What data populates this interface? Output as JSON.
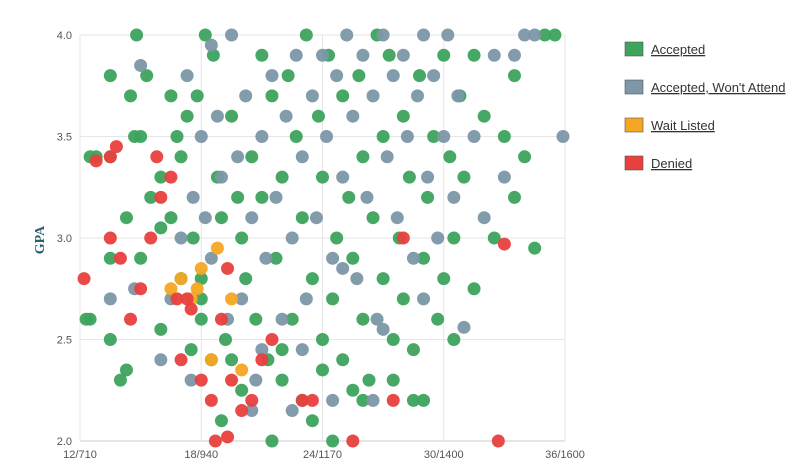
{
  "chart_data": {
    "type": "scatter",
    "title": "",
    "xlabel": "",
    "ylabel": "GPA",
    "x_tick_labels": [
      "12/710",
      "18/940",
      "24/1170",
      "30/1400",
      "36/1600"
    ],
    "x_ticks": [
      12,
      18,
      24,
      30,
      36
    ],
    "xlim": [
      12,
      36
    ],
    "y_ticks": [
      "2.0",
      "2.5",
      "3.0",
      "3.5",
      "4.0"
    ],
    "ylim": [
      2.0,
      4.0
    ],
    "grid": true,
    "legend_position": "right",
    "series": [
      {
        "name": "Accepted",
        "color": "#3da35d",
        "points": [
          [
            12.3,
            2.6
          ],
          [
            12.5,
            2.6
          ],
          [
            12.5,
            3.4
          ],
          [
            13.5,
            3.8
          ],
          [
            13.5,
            3.4
          ],
          [
            13.5,
            2.9
          ],
          [
            14,
            2.3
          ],
          [
            14.3,
            3.1
          ],
          [
            14.5,
            3.7
          ],
          [
            14.7,
            3.5
          ],
          [
            15,
            3.5
          ],
          [
            15,
            2.9
          ],
          [
            15.5,
            3.2
          ],
          [
            16,
            3.3
          ],
          [
            16,
            3.05
          ],
          [
            16.5,
            3.1
          ],
          [
            16.8,
            3.5
          ],
          [
            17,
            3.4
          ],
          [
            17.3,
            3.6
          ],
          [
            17.6,
            3.0
          ],
          [
            17.8,
            3.7
          ],
          [
            18,
            2.8
          ],
          [
            18,
            2.7
          ],
          [
            18.5,
            2.4
          ],
          [
            18.6,
            3.9
          ],
          [
            18.8,
            3.3
          ],
          [
            19,
            3.1
          ],
          [
            19.2,
            2.5
          ],
          [
            19.5,
            3.6
          ],
          [
            19.8,
            3.2
          ],
          [
            20,
            3.0
          ],
          [
            20.2,
            2.8
          ],
          [
            20.5,
            3.4
          ],
          [
            20.7,
            2.6
          ],
          [
            21,
            3.9
          ],
          [
            21,
            3.2
          ],
          [
            21.3,
            2.4
          ],
          [
            21.5,
            3.7
          ],
          [
            21.7,
            2.9
          ],
          [
            22,
            3.3
          ],
          [
            22,
            2.3
          ],
          [
            22.3,
            3.8
          ],
          [
            22.5,
            2.6
          ],
          [
            22.7,
            3.5
          ],
          [
            23,
            2.2
          ],
          [
            23,
            3.1
          ],
          [
            23.2,
            4.0
          ],
          [
            23.5,
            2.8
          ],
          [
            23.8,
            3.6
          ],
          [
            24,
            2.5
          ],
          [
            24,
            3.3
          ],
          [
            24.3,
            3.9
          ],
          [
            24.5,
            2.7
          ],
          [
            24.7,
            3.0
          ],
          [
            25,
            3.7
          ],
          [
            25,
            2.4
          ],
          [
            25.3,
            3.2
          ],
          [
            25.5,
            2.9
          ],
          [
            25.8,
            3.8
          ],
          [
            26,
            2.6
          ],
          [
            26,
            3.4
          ],
          [
            26.3,
            2.3
          ],
          [
            26.5,
            3.1
          ],
          [
            26.7,
            4.0
          ],
          [
            27,
            2.8
          ],
          [
            27,
            3.5
          ],
          [
            27.3,
            3.9
          ],
          [
            27.5,
            2.5
          ],
          [
            27.8,
            3.0
          ],
          [
            28,
            3.6
          ],
          [
            28,
            2.7
          ],
          [
            28.3,
            3.3
          ],
          [
            28.5,
            2.2
          ],
          [
            28.8,
            3.8
          ],
          [
            29,
            2.9
          ],
          [
            29.2,
            3.2
          ],
          [
            29.5,
            3.5
          ],
          [
            29.7,
            2.6
          ],
          [
            30,
            3.9
          ],
          [
            30,
            2.8
          ],
          [
            30.3,
            3.4
          ],
          [
            30.5,
            3.0
          ],
          [
            30.8,
            3.7
          ],
          [
            31,
            3.3
          ],
          [
            31.5,
            3.9
          ],
          [
            32,
            3.6
          ],
          [
            32.5,
            3.0
          ],
          [
            33,
            3.5
          ],
          [
            33.5,
            3.8
          ],
          [
            34,
            3.4
          ],
          [
            34.5,
            2.95
          ],
          [
            35,
            4.0
          ],
          [
            35.5,
            4.0
          ],
          [
            19,
            2.1
          ],
          [
            21.5,
            2.0
          ],
          [
            24.5,
            2.0
          ],
          [
            23.5,
            2.1
          ],
          [
            17.5,
            2.45
          ],
          [
            14.3,
            2.35
          ],
          [
            13.5,
            2.5
          ],
          [
            16,
            2.55
          ],
          [
            22,
            2.45
          ],
          [
            26,
            2.2
          ],
          [
            29,
            2.2
          ],
          [
            30.5,
            2.5
          ],
          [
            31.5,
            2.75
          ],
          [
            20,
            2.25
          ],
          [
            25.5,
            2.25
          ],
          [
            18,
            2.6
          ],
          [
            27.5,
            2.3
          ],
          [
            12.8,
            3.4
          ],
          [
            15.3,
            3.8
          ],
          [
            16.5,
            3.7
          ],
          [
            18.2,
            4.0
          ],
          [
            14.8,
            4.0
          ],
          [
            17,
            2.8
          ],
          [
            19.5,
            2.4
          ],
          [
            24,
            2.35
          ],
          [
            28.5,
            2.45
          ],
          [
            33.5,
            3.2
          ]
        ]
      },
      {
        "name": "Accepted, Won't Attend",
        "color": "#7b97a8",
        "points": [
          [
            13.5,
            2.7
          ],
          [
            14.7,
            2.75
          ],
          [
            15,
            3.85
          ],
          [
            16,
            2.4
          ],
          [
            16.5,
            2.7
          ],
          [
            17,
            3.0
          ],
          [
            17.3,
            3.8
          ],
          [
            17.6,
            3.2
          ],
          [
            18,
            3.5
          ],
          [
            18.2,
            3.1
          ],
          [
            18.5,
            2.9
          ],
          [
            18.8,
            3.6
          ],
          [
            19,
            3.3
          ],
          [
            19.3,
            2.6
          ],
          [
            19.5,
            4.0
          ],
          [
            19.8,
            3.4
          ],
          [
            20,
            2.7
          ],
          [
            20.2,
            3.7
          ],
          [
            20.5,
            3.1
          ],
          [
            20.7,
            2.3
          ],
          [
            21,
            3.5
          ],
          [
            21.2,
            2.9
          ],
          [
            21.5,
            3.8
          ],
          [
            21.7,
            3.2
          ],
          [
            22,
            2.6
          ],
          [
            22.2,
            3.6
          ],
          [
            22.5,
            3.0
          ],
          [
            22.7,
            3.9
          ],
          [
            23,
            3.4
          ],
          [
            23.2,
            2.7
          ],
          [
            23.5,
            3.7
          ],
          [
            23.7,
            3.1
          ],
          [
            24,
            3.9
          ],
          [
            24.2,
            3.5
          ],
          [
            24.5,
            2.9
          ],
          [
            24.7,
            3.8
          ],
          [
            25,
            3.3
          ],
          [
            25.2,
            4.0
          ],
          [
            25.5,
            3.6
          ],
          [
            25.7,
            2.8
          ],
          [
            26,
            3.9
          ],
          [
            26.2,
            3.2
          ],
          [
            26.5,
            3.7
          ],
          [
            26.7,
            2.6
          ],
          [
            27,
            4.0
          ],
          [
            27.2,
            3.4
          ],
          [
            27.5,
            3.8
          ],
          [
            27.7,
            3.1
          ],
          [
            28,
            3.9
          ],
          [
            28.2,
            3.5
          ],
          [
            28.5,
            2.9
          ],
          [
            28.7,
            3.7
          ],
          [
            29,
            4.0
          ],
          [
            29.2,
            3.3
          ],
          [
            29.5,
            3.8
          ],
          [
            29.7,
            3.0
          ],
          [
            30,
            3.5
          ],
          [
            30.2,
            4.0
          ],
          [
            30.5,
            3.2
          ],
          [
            30.7,
            3.7
          ],
          [
            31,
            2.56
          ],
          [
            31.5,
            3.5
          ],
          [
            32,
            3.1
          ],
          [
            32.5,
            3.9
          ],
          [
            33,
            3.3
          ],
          [
            33.5,
            3.9
          ],
          [
            34,
            4.0
          ],
          [
            34.5,
            4.0
          ],
          [
            35.9,
            3.5
          ],
          [
            22.5,
            2.15
          ],
          [
            20.5,
            2.15
          ],
          [
            24.5,
            2.2
          ],
          [
            26.5,
            2.2
          ],
          [
            17.5,
            2.3
          ],
          [
            25,
            2.85
          ],
          [
            23,
            2.45
          ],
          [
            27,
            2.55
          ],
          [
            29,
            2.7
          ],
          [
            21,
            2.45
          ],
          [
            18.5,
            3.95
          ]
        ]
      },
      {
        "name": "Wait Listed",
        "color": "#f5a623",
        "points": [
          [
            16.5,
            2.75
          ],
          [
            17,
            2.8
          ],
          [
            17.5,
            2.7
          ],
          [
            18,
            2.85
          ],
          [
            18.5,
            2.4
          ],
          [
            18.8,
            2.95
          ],
          [
            19.5,
            2.7
          ],
          [
            20,
            2.35
          ],
          [
            17.8,
            2.75
          ]
        ]
      },
      {
        "name": "Denied",
        "color": "#e8403e",
        "points": [
          [
            12.2,
            2.8
          ],
          [
            13.5,
            3.0
          ],
          [
            13.5,
            3.4
          ],
          [
            14,
            2.9
          ],
          [
            14.5,
            2.6
          ],
          [
            15,
            2.75
          ],
          [
            15.5,
            3.0
          ],
          [
            15.8,
            3.4
          ],
          [
            16,
            3.2
          ],
          [
            16.5,
            3.3
          ],
          [
            16.8,
            2.7
          ],
          [
            17,
            2.4
          ],
          [
            17.3,
            2.7
          ],
          [
            17.5,
            2.65
          ],
          [
            18,
            2.3
          ],
          [
            18.5,
            2.2
          ],
          [
            18.7,
            2.0
          ],
          [
            19,
            2.6
          ],
          [
            19.3,
            2.85
          ],
          [
            19.5,
            2.3
          ],
          [
            20,
            2.15
          ],
          [
            20.5,
            2.2
          ],
          [
            21,
            2.4
          ],
          [
            21.5,
            2.5
          ],
          [
            23,
            2.2
          ],
          [
            23.5,
            2.2
          ],
          [
            25.5,
            2.0
          ],
          [
            27.5,
            2.2
          ],
          [
            28,
            3.0
          ],
          [
            32.7,
            2.0
          ],
          [
            33,
            2.97
          ],
          [
            13.8,
            3.45
          ],
          [
            12.8,
            3.38
          ],
          [
            19.3,
            2.02
          ]
        ]
      }
    ]
  }
}
